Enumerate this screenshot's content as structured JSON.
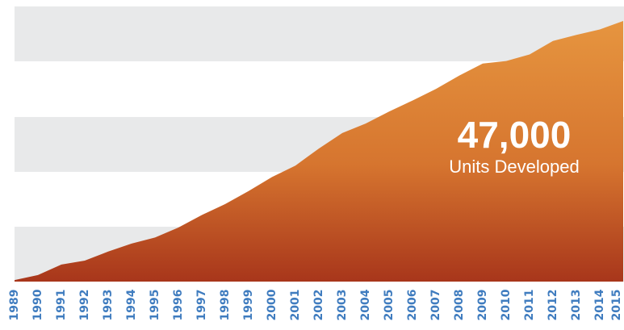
{
  "chart_data": {
    "type": "area",
    "title": "",
    "xlabel": "",
    "ylabel": "",
    "x": [
      "1989",
      "1990",
      "1991",
      "1992",
      "1993",
      "1994",
      "1995",
      "1996",
      "1997",
      "1998",
      "1999",
      "2000",
      "2001",
      "2002",
      "2003",
      "2004",
      "2005",
      "2006",
      "2007",
      "2008",
      "2009",
      "2010",
      "2011",
      "2012",
      "2013",
      "2014",
      "2015"
    ],
    "values": [
      300,
      1300,
      3400,
      4200,
      6000,
      7600,
      8800,
      10800,
      13300,
      15500,
      18100,
      20900,
      23200,
      26600,
      29700,
      31600,
      34000,
      36200,
      38500,
      41200,
      43600,
      44100,
      45400,
      48100,
      49300,
      50400,
      52100
    ],
    "ylim": [
      0,
      55000
    ],
    "grid": "alternating horizontal bands",
    "colors": {
      "area_top": "#e6953f",
      "area_bottom": "#a8361b",
      "band": "#e8e9ea",
      "tick_label": "#3f7cbf"
    },
    "annotation": {
      "value": "47,000",
      "label": "Units Developed"
    }
  }
}
